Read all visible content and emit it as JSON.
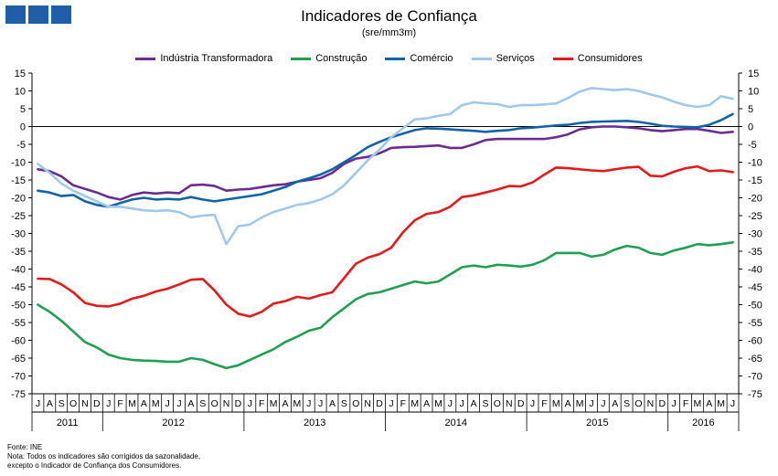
{
  "chart_data": {
    "type": "line",
    "title": "Indicadores de Confiança",
    "subtitle": "(sre/mm3m)",
    "ylim": [
      -75,
      15
    ],
    "yticks": [
      15,
      10,
      5,
      0,
      -5,
      -10,
      -15,
      -20,
      -25,
      -30,
      -35,
      -40,
      -45,
      -50,
      -55,
      -60,
      -65,
      -70,
      -75
    ],
    "months": [
      "J",
      "A",
      "S",
      "O",
      "N",
      "D",
      "J",
      "F",
      "M",
      "A",
      "M",
      "J",
      "J",
      "A",
      "S",
      "O",
      "N",
      "D",
      "J",
      "F",
      "M",
      "A",
      "M",
      "J",
      "J",
      "A",
      "S",
      "O",
      "N",
      "D",
      "J",
      "F",
      "M",
      "A",
      "M",
      "J",
      "J",
      "A",
      "S",
      "O",
      "N",
      "D",
      "J",
      "F",
      "M",
      "A",
      "M",
      "J",
      "J",
      "A",
      "S",
      "O",
      "N",
      "D",
      "J",
      "F",
      "M",
      "A",
      "M",
      "J"
    ],
    "years": [
      {
        "label": "2011",
        "start": 0,
        "count": 6
      },
      {
        "label": "2012",
        "start": 6,
        "count": 12
      },
      {
        "label": "2013",
        "start": 18,
        "count": 12
      },
      {
        "label": "2014",
        "start": 30,
        "count": 12
      },
      {
        "label": "2015",
        "start": 42,
        "count": 12
      },
      {
        "label": "2016",
        "start": 54,
        "count": 6
      }
    ],
    "series": [
      {
        "name": "Indústria Transformadora",
        "color": "#6b2c8f",
        "values": [
          -12,
          -12.5,
          -14,
          -16.5,
          -17.5,
          -18.5,
          -19.8,
          -20.5,
          -19.2,
          -18.5,
          -18.8,
          -18.5,
          -18.7,
          -16.5,
          -16.3,
          -16.7,
          -18,
          -17.7,
          -17.5,
          -17,
          -16.5,
          -16.2,
          -15.5,
          -15,
          -14.5,
          -13,
          -10.5,
          -9,
          -8.5,
          -7.5,
          -6,
          -5.8,
          -5.7,
          -5.5,
          -5.3,
          -6,
          -6,
          -5,
          -3.8,
          -3.5,
          -3.5,
          -3.5,
          -3.5,
          -3.5,
          -3,
          -2.2,
          -0.8,
          -0.2,
          0,
          0,
          -0.2,
          -0.5,
          -1,
          -1.3,
          -1,
          -0.7,
          -0.7,
          -1.2,
          -1.8,
          -1.5
        ]
      },
      {
        "name": "Construção",
        "color": "#1fa050",
        "values": [
          -50,
          -52,
          -54.5,
          -57.5,
          -60.5,
          -62,
          -64,
          -65,
          -65.5,
          -65.7,
          -65.8,
          -66,
          -66,
          -65,
          -65.5,
          -66.7,
          -67.8,
          -67,
          -65.5,
          -64,
          -62.5,
          -60.5,
          -59,
          -57.3,
          -56.5,
          -53.5,
          -51,
          -48.5,
          -47,
          -46.5,
          -45.5,
          -44.5,
          -43.5,
          -44,
          -43.5,
          -41.5,
          -39.5,
          -39,
          -39.5,
          -38.8,
          -39,
          -39.3,
          -38.8,
          -37.5,
          -35.5,
          -35.5,
          -35.5,
          -36.5,
          -36,
          -34.5,
          -33.5,
          -34,
          -35.5,
          -36,
          -34.8,
          -34,
          -33,
          -33.3,
          -33,
          -32.5
        ]
      },
      {
        "name": "Comércio",
        "color": "#1462a6",
        "values": [
          -18,
          -18.5,
          -19.5,
          -19.2,
          -21,
          -22,
          -22.5,
          -21.5,
          -20.5,
          -20,
          -20.5,
          -20.3,
          -20.5,
          -19.8,
          -20.5,
          -21,
          -20.5,
          -20,
          -19.5,
          -19,
          -18,
          -17,
          -15.5,
          -14.5,
          -13.5,
          -12,
          -10,
          -8,
          -5.8,
          -4.3,
          -3,
          -2,
          -1,
          -0.5,
          -0.6,
          -0.8,
          -1,
          -1.2,
          -1.5,
          -1.2,
          -1,
          -0.5,
          -0.3,
          0,
          0.3,
          0.5,
          1,
          1.3,
          1.4,
          1.5,
          1.6,
          1.3,
          0.8,
          0.2,
          0,
          -0.1,
          -0.2,
          0.5,
          1.8,
          3.5
        ]
      },
      {
        "name": "Serviços",
        "color": "#a0c8eb",
        "values": [
          -10.5,
          -13,
          -16,
          -18,
          -19.5,
          -21,
          -22.5,
          -22.5,
          -23,
          -23.5,
          -23.7,
          -23.5,
          -24,
          -25.5,
          -25,
          -24.8,
          -33,
          -28,
          -27.5,
          -25.5,
          -24,
          -23,
          -22,
          -21.5,
          -20.5,
          -19,
          -16.5,
          -13,
          -9.5,
          -6.5,
          -3,
          -0.5,
          2,
          2.3,
          3,
          3.5,
          6,
          6.8,
          6.5,
          6.3,
          5.5,
          6,
          6,
          6.2,
          6.5,
          8,
          9.8,
          10.8,
          10.5,
          10.2,
          10.5,
          10,
          9,
          8.2,
          7,
          6,
          5.5,
          6,
          8.5,
          7.8
        ]
      },
      {
        "name": "Consumidores",
        "color": "#e31a1c",
        "values": [
          -42.7,
          -42.8,
          -44.3,
          -46.5,
          -49.5,
          -50.3,
          -50.5,
          -49.7,
          -48.3,
          -47.5,
          -46.3,
          -45.5,
          -44.3,
          -43,
          -42.8,
          -46,
          -50,
          -52.5,
          -53.3,
          -52,
          -49.7,
          -49,
          -47.8,
          -48.3,
          -47.3,
          -46.5,
          -42.5,
          -38.5,
          -36.8,
          -35.8,
          -34,
          -29.7,
          -26.3,
          -24.5,
          -24,
          -22.5,
          -19.8,
          -19.3,
          -18.5,
          -17.7,
          -16.7,
          -16.8,
          -15.7,
          -13.5,
          -11.5,
          -11.7,
          -12,
          -12.3,
          -12.5,
          -12,
          -11.5,
          -11.3,
          -13.8,
          -14,
          -12.7,
          -11.7,
          -11.2,
          -12.5,
          -12.3,
          -12.8
        ]
      }
    ]
  },
  "header": {
    "logo_label": "INE"
  },
  "footer": {
    "source": "Fonte: INE",
    "note1": "Nota: Todos os indicadores são corrigidos da sazonalidade,",
    "note2": "excepto o Indicador de Confiança dos Consumidores."
  }
}
